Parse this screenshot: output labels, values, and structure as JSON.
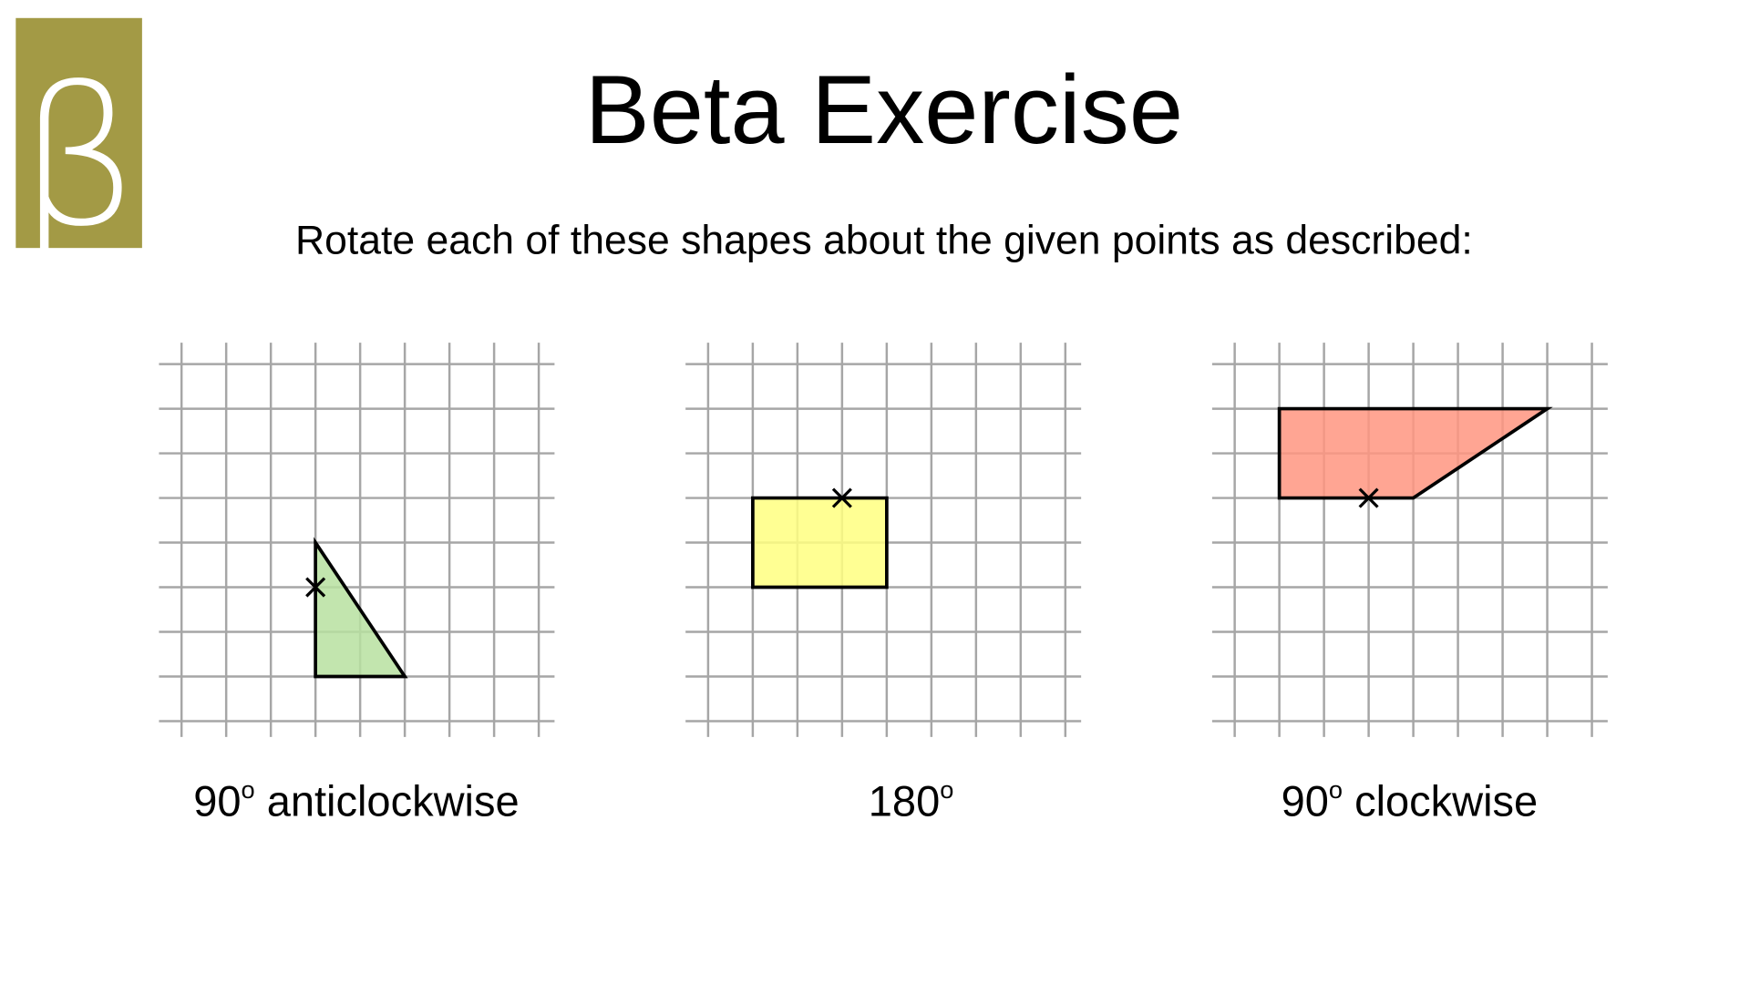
{
  "logo": {
    "glyph": "β",
    "color": "#a39a45"
  },
  "title": "Beta Exercise",
  "instruction": "Rotate each of these shapes about the given points as described:",
  "grid": {
    "columns": 8,
    "rows": 8,
    "line_color": "#a6a6a6"
  },
  "exercises": [
    {
      "shape": "triangle",
      "fill": "#b7e0a0",
      "vertices": [
        [
          3,
          4
        ],
        [
          3,
          7
        ],
        [
          5,
          7
        ]
      ],
      "centre": [
        3,
        5
      ],
      "caption": {
        "number": "90",
        "degree": "o",
        "rest": " anticlockwise"
      }
    },
    {
      "shape": "rectangle",
      "fill": "#ffff80",
      "vertices": [
        [
          1,
          3
        ],
        [
          4,
          3
        ],
        [
          4,
          5
        ],
        [
          1,
          5
        ]
      ],
      "centre": [
        3,
        3
      ],
      "caption": {
        "number": "180",
        "degree": "o",
        "rest": ""
      }
    },
    {
      "shape": "trapezium",
      "fill": "#ff9580",
      "vertices": [
        [
          1,
          1
        ],
        [
          7,
          1
        ],
        [
          4,
          3
        ],
        [
          1,
          3
        ]
      ],
      "centre": [
        3,
        3
      ],
      "caption": {
        "number": "90",
        "degree": "o",
        "rest": " clockwise"
      }
    }
  ]
}
